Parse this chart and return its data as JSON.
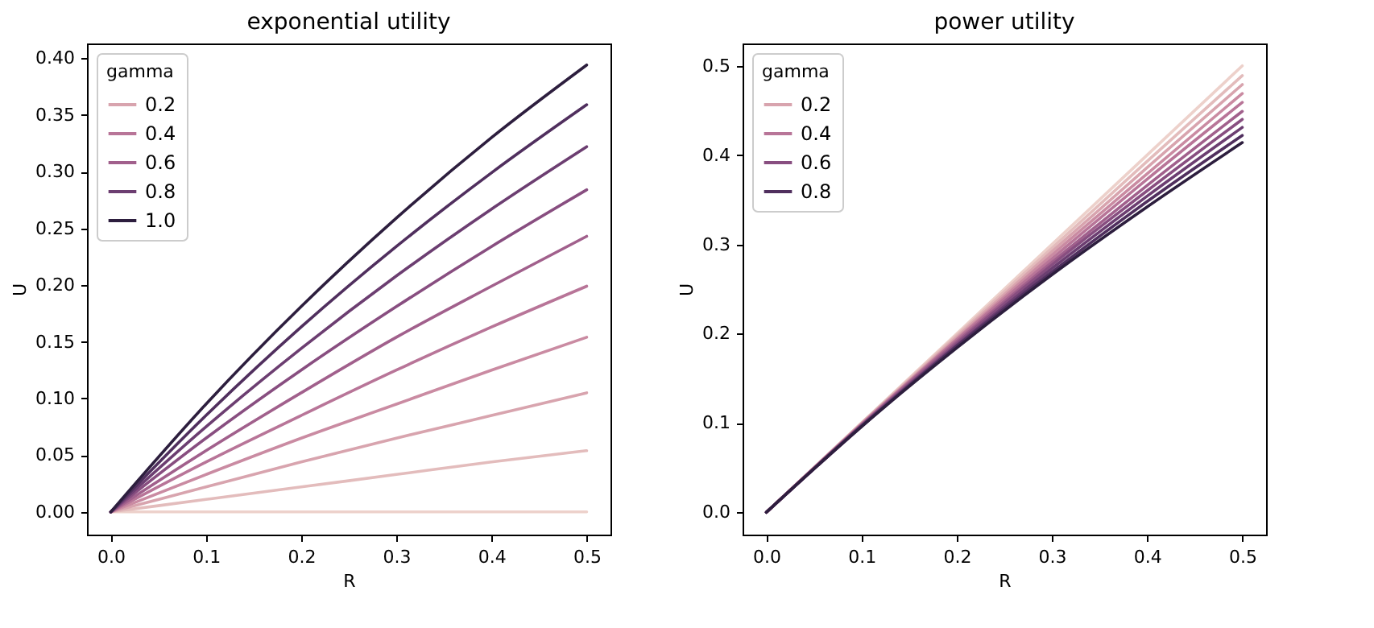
{
  "chart_data": [
    {
      "type": "line",
      "title": "exponential utility",
      "xlabel": "R",
      "ylabel": "U",
      "legend_title": "gamma",
      "legend": "top left",
      "x": [
        0,
        0.1,
        0.2,
        0.3,
        0.4,
        0.5
      ],
      "xlim": [
        -0.025,
        0.525
      ],
      "ylim": [
        -0.02,
        0.413
      ],
      "xticks": [
        {
          "value": 0,
          "label": "0.0"
        },
        {
          "value": 0.1,
          "label": "0.1"
        },
        {
          "value": 0.2,
          "label": "0.2"
        },
        {
          "value": 0.3,
          "label": "0.3"
        },
        {
          "value": 0.4,
          "label": "0.4"
        },
        {
          "value": 0.5,
          "label": "0.5"
        }
      ],
      "yticks": [
        {
          "value": 0,
          "label": "0.00"
        },
        {
          "value": 0.05,
          "label": "0.05"
        },
        {
          "value": 0.1,
          "label": "0.10"
        },
        {
          "value": 0.15,
          "label": "0.15"
        },
        {
          "value": 0.2,
          "label": "0.20"
        },
        {
          "value": 0.25,
          "label": "0.25"
        },
        {
          "value": 0.3,
          "label": "0.30"
        },
        {
          "value": 0.35,
          "label": "0.35"
        },
        {
          "value": 0.4,
          "label": "0.40"
        }
      ],
      "series": [
        {
          "color": "#edd1cb",
          "values": [
            0,
            0,
            0,
            0,
            0,
            0
          ]
        },
        {
          "color": "#e3bcbc",
          "values": [
            0,
            0.011,
            0.022,
            0.033,
            0.044,
            0.054
          ]
        },
        {
          "name": "0.2",
          "color": "#d8a4ae",
          "values": [
            0,
            0.022,
            0.044,
            0.065,
            0.085,
            0.105
          ]
        },
        {
          "color": "#ca8ba2",
          "values": [
            0,
            0.033,
            0.065,
            0.095,
            0.125,
            0.154
          ]
        },
        {
          "name": "0.4",
          "color": "#b87598",
          "values": [
            0,
            0.044,
            0.085,
            0.125,
            0.163,
            0.199
          ]
        },
        {
          "name": "0.6",
          "color": "#a1608c",
          "values": [
            0,
            0.054,
            0.105,
            0.154,
            0.199,
            0.243
          ]
        },
        {
          "color": "#884e80",
          "values": [
            0,
            0.065,
            0.125,
            0.181,
            0.234,
            0.284
          ]
        },
        {
          "name": "0.8",
          "color": "#6c3e71",
          "values": [
            0,
            0.075,
            0.144,
            0.208,
            0.267,
            0.322
          ]
        },
        {
          "color": "#502f5e",
          "values": [
            0,
            0.085,
            0.163,
            0.234,
            0.299,
            0.359
          ]
        },
        {
          "name": "1.0",
          "color": "#2d1e3e",
          "values": [
            0,
            0.095,
            0.181,
            0.259,
            0.33,
            0.394
          ]
        }
      ]
    },
    {
      "type": "line",
      "title": "power utility",
      "xlabel": "R",
      "ylabel": "U",
      "legend_title": "gamma",
      "legend": "top left",
      "x": [
        0,
        0.1,
        0.2,
        0.3,
        0.4,
        0.5
      ],
      "xlim": [
        -0.025,
        0.525
      ],
      "ylim": [
        -0.025,
        0.525
      ],
      "xticks": [
        {
          "value": 0,
          "label": "0.0"
        },
        {
          "value": 0.1,
          "label": "0.1"
        },
        {
          "value": 0.2,
          "label": "0.2"
        },
        {
          "value": 0.3,
          "label": "0.3"
        },
        {
          "value": 0.4,
          "label": "0.4"
        },
        {
          "value": 0.5,
          "label": "0.5"
        }
      ],
      "yticks": [
        {
          "value": 0,
          "label": "0.0"
        },
        {
          "value": 0.1,
          "label": "0.1"
        },
        {
          "value": 0.2,
          "label": "0.2"
        },
        {
          "value": 0.3,
          "label": "0.3"
        },
        {
          "value": 0.4,
          "label": "0.4"
        },
        {
          "value": 0.5,
          "label": "0.5"
        }
      ],
      "series": [
        {
          "color": "#edd1cb",
          "values": [
            0,
            0.1,
            0.2,
            0.3,
            0.4,
            0.5
          ]
        },
        {
          "color": "#e3bcbc",
          "values": [
            0,
            0.1,
            0.198,
            0.296,
            0.393,
            0.489
          ]
        },
        {
          "name": "0.2",
          "color": "#d8a4ae",
          "values": [
            0,
            0.099,
            0.196,
            0.292,
            0.386,
            0.479
          ]
        },
        {
          "color": "#ca8ba2",
          "values": [
            0,
            0.099,
            0.194,
            0.288,
            0.379,
            0.469
          ]
        },
        {
          "name": "0.4",
          "color": "#b87598",
          "values": [
            0,
            0.098,
            0.193,
            0.284,
            0.373,
            0.459
          ]
        },
        {
          "color": "#a1608c",
          "values": [
            0,
            0.098,
            0.191,
            0.28,
            0.366,
            0.449
          ]
        },
        {
          "name": "0.6",
          "color": "#884e80",
          "values": [
            0,
            0.097,
            0.189,
            0.277,
            0.36,
            0.44
          ]
        },
        {
          "color": "#6c3e71",
          "values": [
            0,
            0.097,
            0.187,
            0.273,
            0.354,
            0.431
          ]
        },
        {
          "name": "0.8",
          "color": "#502f5e",
          "values": [
            0,
            0.096,
            0.186,
            0.269,
            0.348,
            0.422
          ]
        },
        {
          "color": "#2d1e3e",
          "values": [
            0,
            0.096,
            0.184,
            0.266,
            0.342,
            0.414
          ]
        }
      ]
    }
  ]
}
